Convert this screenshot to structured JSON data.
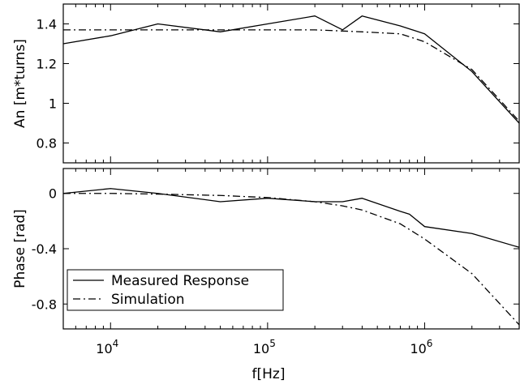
{
  "chart_data": [
    {
      "type": "line",
      "title": "",
      "xlabel": "",
      "ylabel": "An [m*turns]",
      "xscale": "log",
      "xlim": [
        5000,
        4000000
      ],
      "ylim": [
        0.7,
        1.5
      ],
      "yticks": [
        0.8,
        1,
        1.2,
        1.4
      ],
      "ytick_labels": [
        "0.8",
        "1",
        "1.2",
        "1.4"
      ],
      "grid": false,
      "series": [
        {
          "name": "Measured Response",
          "style": "solid",
          "x": [
            5000,
            10000,
            20000,
            50000,
            100000,
            200000,
            300000,
            400000,
            700000,
            1000000,
            2000000,
            4000000
          ],
          "y": [
            1.3,
            1.34,
            1.4,
            1.36,
            1.4,
            1.44,
            1.37,
            1.44,
            1.39,
            1.35,
            1.16,
            0.9
          ]
        },
        {
          "name": "Simulation",
          "style": "dashdot",
          "x": [
            5000,
            10000,
            20000,
            50000,
            100000,
            200000,
            400000,
            700000,
            1000000,
            2000000,
            4000000
          ],
          "y": [
            1.37,
            1.37,
            1.37,
            1.37,
            1.37,
            1.37,
            1.36,
            1.35,
            1.31,
            1.17,
            0.91
          ]
        }
      ]
    },
    {
      "type": "line",
      "title": "",
      "xlabel": "f[Hz]",
      "ylabel": "Phase [rad]",
      "xscale": "log",
      "xlim": [
        5000,
        4000000
      ],
      "ylim": [
        -0.98,
        0.18
      ],
      "xticks": [
        10000,
        100000,
        1000000
      ],
      "xtick_labels": [
        {
          "base": "10",
          "exp": "4"
        },
        {
          "base": "10",
          "exp": "5"
        },
        {
          "base": "10",
          "exp": "6"
        }
      ],
      "yticks": [
        -0.8,
        -0.4,
        0
      ],
      "ytick_labels": [
        "-0.8",
        "-0.4",
        "0"
      ],
      "grid": false,
      "legend": {
        "position": "bottom-left",
        "entries": [
          "Measured Response",
          "Simulation"
        ]
      },
      "series": [
        {
          "name": "Measured Response",
          "style": "solid",
          "x": [
            5000,
            10000,
            20000,
            50000,
            100000,
            200000,
            300000,
            400000,
            700000,
            800000,
            1000000,
            2000000,
            4000000
          ],
          "y": [
            0.0,
            0.035,
            0.0,
            -0.06,
            -0.035,
            -0.06,
            -0.06,
            -0.035,
            -0.13,
            -0.15,
            -0.24,
            -0.29,
            -0.39
          ],
          "y_note": ""
        },
        {
          "name": "Simulation",
          "style": "dashdot",
          "x": [
            5000,
            10000,
            20000,
            50000,
            100000,
            200000,
            300000,
            400000,
            700000,
            1000000,
            2000000,
            4000000
          ],
          "y": [
            0.0,
            0.0,
            -0.005,
            -0.015,
            -0.03,
            -0.06,
            -0.09,
            -0.12,
            -0.22,
            -0.33,
            -0.58,
            -0.95
          ]
        }
      ]
    }
  ]
}
